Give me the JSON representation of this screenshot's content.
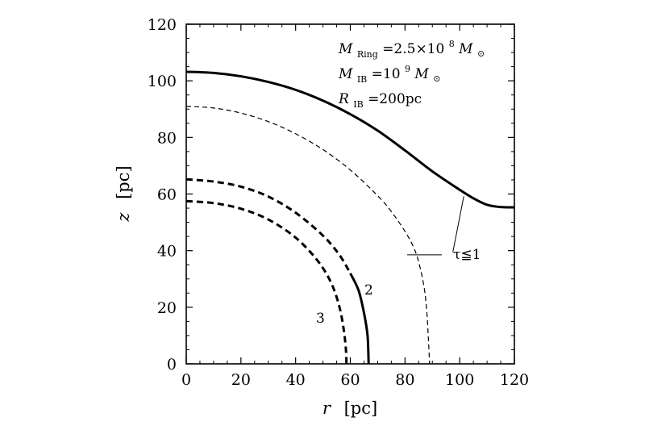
{
  "chart_data": {
    "type": "line",
    "xlabel_var": "r",
    "xlabel_unit": "[pc]",
    "ylabel_var": "z",
    "ylabel_unit": "[pc]",
    "xlim": [
      0,
      120
    ],
    "ylim": [
      0,
      120
    ],
    "xticks": [
      0,
      20,
      40,
      60,
      80,
      100,
      120
    ],
    "yticks": [
      0,
      20,
      40,
      60,
      80,
      100,
      120
    ],
    "params": {
      "ring_var": "M",
      "ring_sub": "Ring",
      "ring_value": "=2.5×10",
      "ring_exp": "8",
      "ring_unit": "M",
      "ring_unit_sub": "⊙",
      "ib_var": "M",
      "ib_sub": "IB",
      "ib_value": "=10",
      "ib_exp": "9",
      "ib_unit": "M",
      "ib_unit_sub": "⊙",
      "rib_var": "R",
      "rib_sub": "IB",
      "rib_value": "=200pc"
    },
    "annotations": {
      "tau_label": "τ≦1",
      "label_2": "2",
      "label_3": "3"
    },
    "series": [
      {
        "style": "thick-solid",
        "points": [
          [
            0,
            103.2
          ],
          [
            10,
            102.8
          ],
          [
            20,
            101.6
          ],
          [
            30,
            99.6
          ],
          [
            40,
            96.8
          ],
          [
            50,
            93.0
          ],
          [
            60,
            88.2
          ],
          [
            70,
            82.4
          ],
          [
            80,
            75.4
          ],
          [
            90,
            68.0
          ],
          [
            100,
            61.5
          ],
          [
            105,
            58.5
          ],
          [
            110,
            56.2
          ],
          [
            115,
            55.4
          ],
          [
            120,
            55.3
          ]
        ]
      },
      {
        "style": "thin-dashed",
        "points": [
          [
            0,
            91.0
          ],
          [
            10,
            90.4
          ],
          [
            20,
            88.6
          ],
          [
            30,
            85.6
          ],
          [
            40,
            81.3
          ],
          [
            50,
            75.7
          ],
          [
            60,
            68.5
          ],
          [
            70,
            59.4
          ],
          [
            75,
            53.8
          ],
          [
            80,
            46.8
          ],
          [
            83,
            41.5
          ],
          [
            85,
            36.0
          ],
          [
            87,
            27.0
          ],
          [
            88,
            18.0
          ],
          [
            88.6,
            8.0
          ],
          [
            89,
            0
          ]
        ]
      },
      {
        "style": "thick-mixed",
        "solid_below_y": 32,
        "points": [
          [
            0,
            65.2
          ],
          [
            10,
            64.4
          ],
          [
            20,
            62.6
          ],
          [
            30,
            59.1
          ],
          [
            40,
            53.4
          ],
          [
            50,
            45.3
          ],
          [
            56,
            38.5
          ],
          [
            60,
            32.0
          ],
          [
            63,
            26.0
          ],
          [
            65,
            18.0
          ],
          [
            66.3,
            10.0
          ],
          [
            66.7,
            0
          ]
        ]
      },
      {
        "style": "thick-dashed",
        "points": [
          [
            0,
            57.5
          ],
          [
            10,
            56.8
          ],
          [
            20,
            54.8
          ],
          [
            30,
            51.0
          ],
          [
            40,
            44.6
          ],
          [
            48,
            36.5
          ],
          [
            53,
            28.6
          ],
          [
            56,
            20.2
          ],
          [
            57.6,
            12.0
          ],
          [
            58.4,
            5.0
          ],
          [
            58.6,
            0
          ]
        ]
      }
    ],
    "tau_leader": [
      [
        101.5,
        59.2
      ],
      [
        97.5,
        39.5
      ]
    ],
    "dash_leader": [
      [
        80.8,
        38.5
      ],
      [
        93.5,
        38.5
      ]
    ]
  }
}
